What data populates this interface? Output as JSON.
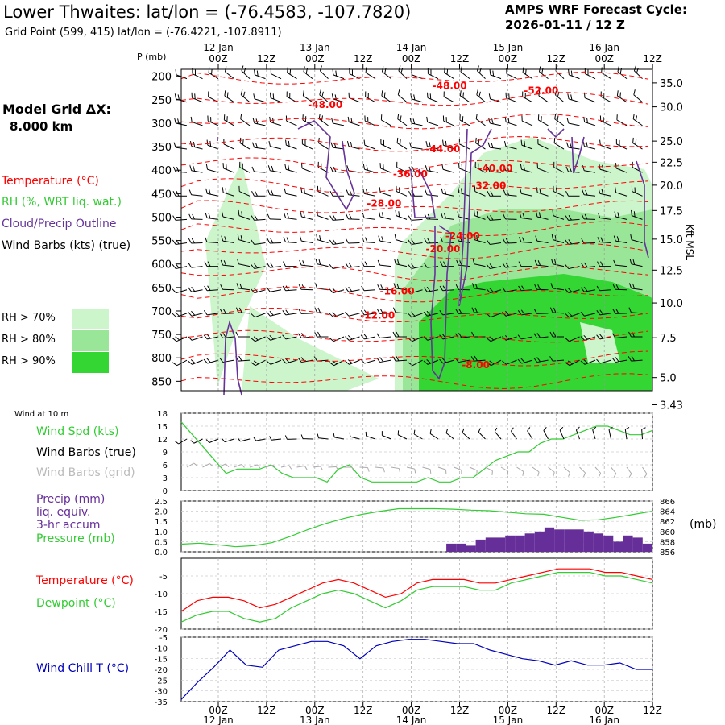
{
  "header": {
    "title": "Lower Thwaites:  lat/lon = (-76.4583, -107.7820)",
    "gridpoint": "Grid Point (599, 415) lat/lon = (-76.4221, -107.8911)",
    "cycle_line1": "AMPS WRF Forecast Cycle:",
    "cycle_line2": "2026-01-11 / 12  Z"
  },
  "top_axis": {
    "p_unit": "P (mb)",
    "day_labels": [
      "12 Jan",
      "13 Jan",
      "14 Jan",
      "15 Jan",
      "16 Jan"
    ],
    "hour_labels": [
      "00Z",
      "12Z",
      "00Z",
      "12Z",
      "00Z",
      "12Z",
      "00Z",
      "12Z",
      "00Z",
      "12Z"
    ]
  },
  "bottom_axis": {
    "day_labels": [
      "12 Jan",
      "13 Jan",
      "14 Jan",
      "15 Jan",
      "16 Jan"
    ],
    "hour_labels": [
      "00Z",
      "12Z",
      "00Z",
      "12Z",
      "00Z",
      "12Z",
      "00Z",
      "12Z",
      "00Z",
      "12Z"
    ]
  },
  "left_legend": {
    "grid_line1": "Model Grid ΔX:",
    "grid_line2": "8.000 km",
    "temp": "Temperature (°C)",
    "rh": "RH (%, WRT liq. wat.)",
    "cloud": "Cloud/Precip Outline",
    "wind": "Wind Barbs (kts) (true)",
    "rh70": "RH > 70%",
    "rh80": "RH > 80%",
    "rh90": "RH > 90%"
  },
  "right_axis": {
    "label": "Kft MSL"
  },
  "panels": {
    "wind_header": "Wind at 10 m",
    "wind_spd": "Wind Spd (kts)",
    "barbs_true": "Wind Barbs (true)",
    "barbs_grid": "Wind Barbs (grid)",
    "precip1": "Precip (mm)",
    "precip2": "liq. equiv.",
    "precip3": "3-hr accum",
    "pressure": "Pressure (mb)",
    "pressure_unit": "(mb)",
    "temperature": "Temperature (°C)",
    "dewpoint": "Dewpoint (°C)",
    "windchill": "Wind Chill T (°C)"
  },
  "colors": {
    "temp": "#ff0000",
    "rh": "#33cc33",
    "rh70": "#ccf5cc",
    "rh80": "#99e699",
    "rh90": "#33d633",
    "cloud": "#663399",
    "wind": "#000000",
    "grid_barbs": "#aaaaaa",
    "precip": "#662e99",
    "windchill": "#0000bb"
  },
  "chart_data": [
    {
      "type": "heatmap",
      "x": [
        "00Z 12 Jan",
        "12Z 12 Jan",
        "00Z 13 Jan",
        "12Z 13 Jan",
        "00Z 14 Jan",
        "12Z 14 Jan",
        "00Z 15 Jan",
        "12Z 15 Jan",
        "00Z 16 Jan",
        "12Z 16 Jan"
      ],
      "y_ticks": [
        200,
        250,
        300,
        350,
        400,
        450,
        500,
        550,
        600,
        650,
        700,
        750,
        800,
        850
      ],
      "height_ticks": [
        "35.0",
        "30.0",
        "25.0",
        "22.5",
        "20.0",
        "17.5",
        "15.0",
        "12.5",
        "10.0",
        "7.5",
        "5.0",
        "3.43"
      ],
      "height_pressures": [
        214,
        265,
        338,
        383,
        432,
        486,
        547,
        613,
        683,
        757,
        842,
        900
      ],
      "temperature_contour_labels": [
        {
          "label": "-48.00",
          "time": 41,
          "p": 227
        },
        {
          "label": "-52.00",
          "time": 55,
          "p": 237
        },
        {
          "label": "-48.00",
          "time": 22,
          "p": 267
        },
        {
          "label": "-44.00",
          "time": 40,
          "p": 362
        },
        {
          "label": "-40.00",
          "time": 48,
          "p": 403
        },
        {
          "label": "-36.00",
          "time": 35,
          "p": 415
        },
        {
          "label": "-32.00",
          "time": 47,
          "p": 440
        },
        {
          "label": "-28.00",
          "time": 31,
          "p": 478
        },
        {
          "label": "-24.00",
          "time": 43,
          "p": 547
        },
        {
          "label": "-20.00",
          "time": 40,
          "p": 575
        },
        {
          "label": "-16.00",
          "time": 33,
          "p": 665
        },
        {
          "label": "-12.00",
          "time": 30,
          "p": 716
        },
        {
          "label": "-8.00",
          "time": 45,
          "p": 822
        }
      ]
    },
    {
      "type": "line",
      "title": "Wind at 10 m",
      "series": [
        {
          "name": "Wind Spd (kts)",
          "values": [
            16,
            13,
            10,
            7,
            4,
            5,
            5,
            5,
            6,
            4,
            3,
            3,
            3,
            2,
            5,
            6,
            3,
            2,
            2,
            2,
            2,
            2,
            3,
            2,
            2,
            3,
            3,
            5,
            7,
            8,
            9,
            9,
            11,
            12,
            12,
            13,
            14,
            15,
            15,
            14,
            13,
            13,
            14
          ]
        }
      ],
      "ylim": [
        0,
        18
      ],
      "yticks": [
        0,
        3,
        6,
        9,
        12,
        15,
        18
      ]
    },
    {
      "type": "bar",
      "series": [
        {
          "name": "Precip (mm)",
          "values": [
            0,
            0,
            0,
            0,
            0,
            0,
            0,
            0,
            0,
            0,
            0,
            0,
            0,
            0,
            0,
            0,
            0,
            0,
            0,
            0,
            0,
            0,
            0,
            0,
            0,
            0,
            0,
            0.4,
            0.4,
            0.3,
            0.6,
            0.7,
            0.7,
            0.8,
            0.8,
            0.9,
            1.0,
            1.2,
            1.1,
            1.1,
            1.1,
            1.0,
            0.9,
            0.8,
            0.5,
            0.8,
            0.7,
            0.4
          ]
        },
        {
          "name": "Pressure (mb)",
          "values": [
            857.5,
            857.7,
            857.4,
            857.0,
            857.2,
            857.8,
            859.0,
            860.4,
            861.6,
            862.6,
            863.4,
            864.0,
            864.5,
            864.5,
            864.5,
            864.4,
            864.2,
            864.1,
            863.8,
            863.5,
            863.4,
            862.8,
            862.2,
            862.3,
            862.8,
            863.4,
            864.0
          ]
        }
      ],
      "ylim": [
        0,
        2.5
      ],
      "yticks": [
        0.0,
        0.5,
        1.0,
        1.5,
        2.0,
        2.5
      ],
      "y2lim": [
        856,
        866
      ],
      "y2ticks": [
        856,
        858,
        860,
        862,
        864,
        866
      ]
    },
    {
      "type": "line",
      "series": [
        {
          "name": "Temperature (°C)",
          "values": [
            -15,
            -12,
            -11,
            -11,
            -12,
            -14,
            -13,
            -11,
            -9,
            -7,
            -6,
            -7,
            -9,
            -11,
            -10,
            -7,
            -6,
            -6,
            -6,
            -7,
            -7,
            -6,
            -5,
            -4,
            -3,
            -3,
            -3,
            -4,
            -4,
            -5,
            -6
          ]
        },
        {
          "name": "Dewpoint (°C)",
          "values": [
            -18,
            -16,
            -15,
            -15,
            -17,
            -18,
            -17,
            -14,
            -12,
            -10,
            -9,
            -10,
            -12,
            -14,
            -12,
            -9,
            -8,
            -8,
            -8,
            -9,
            -9,
            -7,
            -6,
            -5,
            -4,
            -4,
            -4,
            -5,
            -5,
            -6,
            -7
          ]
        }
      ],
      "ylim": [
        -20,
        0
      ],
      "yticks": [
        -20,
        -15,
        -10,
        -5
      ]
    },
    {
      "type": "line",
      "series": [
        {
          "name": "Wind Chill T (°C)",
          "values": [
            -34,
            -26,
            -19,
            -11,
            -18,
            -19,
            -11,
            -9,
            -7,
            -7,
            -9,
            -15,
            -9,
            -7,
            -6,
            -6,
            -7,
            -8,
            -8,
            -11,
            -13,
            -15,
            -16,
            -18,
            -16,
            -18,
            -18,
            -17,
            -20,
            -20
          ]
        }
      ],
      "ylim": [
        -35,
        -5
      ],
      "yticks": [
        -35,
        -30,
        -25,
        -20,
        -15,
        -10,
        -5
      ]
    }
  ]
}
